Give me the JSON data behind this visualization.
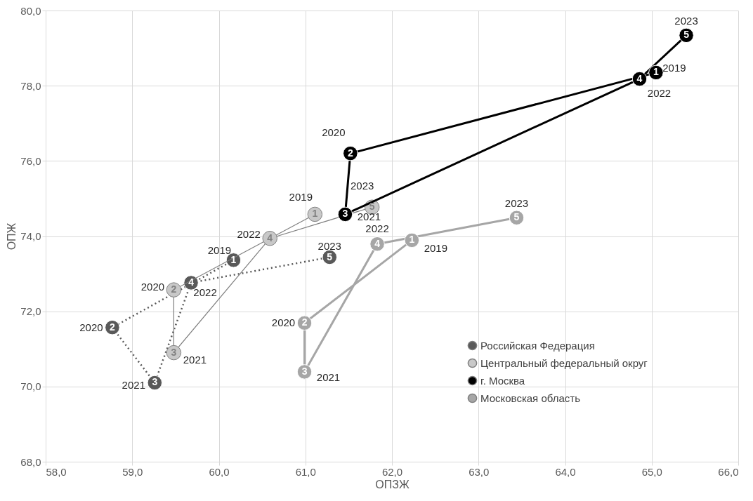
{
  "chart_data": {
    "type": "line",
    "xlabel": "ОПЗЖ",
    "ylabel": "ОПЖ",
    "xlim": [
      58,
      66
    ],
    "ylim": [
      68,
      80
    ],
    "xticks": [
      {
        "value": 58,
        "label": "58,0"
      },
      {
        "value": 59,
        "label": "59,0"
      },
      {
        "value": 60,
        "label": "60,0"
      },
      {
        "value": 61,
        "label": "61,0"
      },
      {
        "value": 62,
        "label": "62,0"
      },
      {
        "value": 63,
        "label": "63,0"
      },
      {
        "value": 64,
        "label": "64,0"
      },
      {
        "value": 65,
        "label": "65,0"
      },
      {
        "value": 66,
        "label": "66,0"
      }
    ],
    "yticks": [
      {
        "value": 68,
        "label": "68,0"
      },
      {
        "value": 70,
        "label": "70,0"
      },
      {
        "value": 72,
        "label": "72,0"
      },
      {
        "value": 74,
        "label": "74,0"
      },
      {
        "value": 76,
        "label": "76,0"
      },
      {
        "value": 78,
        "label": "78,0"
      },
      {
        "value": 80,
        "label": "80,0"
      }
    ],
    "grid": true,
    "legend": "bottom right",
    "marker": "circle",
    "series": [
      {
        "name": "Российская Федерация",
        "color": "#595959",
        "line_style": "dotted",
        "x": [
          60.17,
          58.77,
          59.26,
          59.68,
          61.28
        ],
        "values": [
          73.36,
          71.57,
          70.1,
          72.76,
          73.44
        ]
      },
      {
        "name": "Центральный федеральный округ",
        "color": "#c8c8c8",
        "line_style": "solid",
        "x": [
          61.11,
          59.48,
          59.48,
          60.59,
          61.77
        ],
        "values": [
          74.58,
          72.57,
          70.9,
          73.94,
          74.77
        ]
      },
      {
        "name": "г. Москва",
        "color": "#000000",
        "line_style": "solid",
        "x": [
          65.05,
          61.52,
          61.46,
          64.86,
          65.4
        ],
        "values": [
          78.35,
          76.2,
          74.58,
          78.18,
          79.34
        ]
      },
      {
        "name": "Московская область",
        "color": "#a6a6a6",
        "line_style": "solid",
        "x": [
          62.23,
          60.99,
          60.99,
          61.83,
          63.44
        ],
        "values": [
          73.89,
          71.69,
          70.39,
          73.79,
          74.49
        ]
      }
    ],
    "annotations": [
      {
        "text": "1",
        "x": 60.17,
        "y": 73.36
      },
      {
        "text": "2",
        "x": 58.77,
        "y": 71.57
      },
      {
        "text": "3",
        "x": 59.26,
        "y": 70.1
      },
      {
        "text": "4",
        "x": 59.68,
        "y": 72.76
      },
      {
        "text": "5",
        "x": 61.28,
        "y": 73.44
      },
      {
        "text": "2019",
        "x": 60.17,
        "y": 73.36
      },
      {
        "text": "2020",
        "x": 58.77,
        "y": 71.57
      },
      {
        "text": "2021",
        "x": 59.26,
        "y": 70.1
      },
      {
        "text": "2022",
        "x": 59.68,
        "y": 72.76
      },
      {
        "text": "2023",
        "x": 61.28,
        "y": 73.44
      },
      {
        "text": "1",
        "x": 61.11,
        "y": 74.58
      },
      {
        "text": "2",
        "x": 59.48,
        "y": 72.57
      },
      {
        "text": "3",
        "x": 59.48,
        "y": 70.9
      },
      {
        "text": "4",
        "x": 60.59,
        "y": 73.94
      },
      {
        "text": "5",
        "x": 61.77,
        "y": 74.77
      },
      {
        "text": "2019",
        "x": 61.11,
        "y": 74.58
      },
      {
        "text": "2020",
        "x": 59.48,
        "y": 72.57
      },
      {
        "text": "2021",
        "x": 59.48,
        "y": 70.9
      },
      {
        "text": "2022",
        "x": 60.59,
        "y": 73.94
      },
      {
        "text": "2023",
        "x": 61.77,
        "y": 74.77
      },
      {
        "text": "1",
        "x": 65.05,
        "y": 78.35
      },
      {
        "text": "2",
        "x": 61.52,
        "y": 76.2
      },
      {
        "text": "3",
        "x": 61.46,
        "y": 74.58
      },
      {
        "text": "4",
        "x": 64.86,
        "y": 78.18
      },
      {
        "text": "5",
        "x": 65.4,
        "y": 79.34
      },
      {
        "text": "2019",
        "x": 65.05,
        "y": 78.35
      },
      {
        "text": "2020",
        "x": 61.52,
        "y": 76.2
      },
      {
        "text": "2021",
        "x": 61.46,
        "y": 74.58
      },
      {
        "text": "2022",
        "x": 64.86,
        "y": 78.18
      },
      {
        "text": "2023",
        "x": 65.4,
        "y": 79.34
      },
      {
        "text": "1",
        "x": 62.23,
        "y": 73.89
      },
      {
        "text": "2",
        "x": 60.99,
        "y": 71.69
      },
      {
        "text": "3",
        "x": 60.99,
        "y": 70.39
      },
      {
        "text": "4",
        "x": 61.83,
        "y": 73.79
      },
      {
        "text": "5",
        "x": 63.44,
        "y": 74.49
      },
      {
        "text": "2019",
        "x": 62.23,
        "y": 73.89
      },
      {
        "text": "2020",
        "x": 60.99,
        "y": 71.69
      },
      {
        "text": "2021",
        "x": 60.99,
        "y": 70.39
      },
      {
        "text": "2022",
        "x": 61.83,
        "y": 73.79
      },
      {
        "text": "2023",
        "x": 63.44,
        "y": 74.49
      }
    ]
  }
}
